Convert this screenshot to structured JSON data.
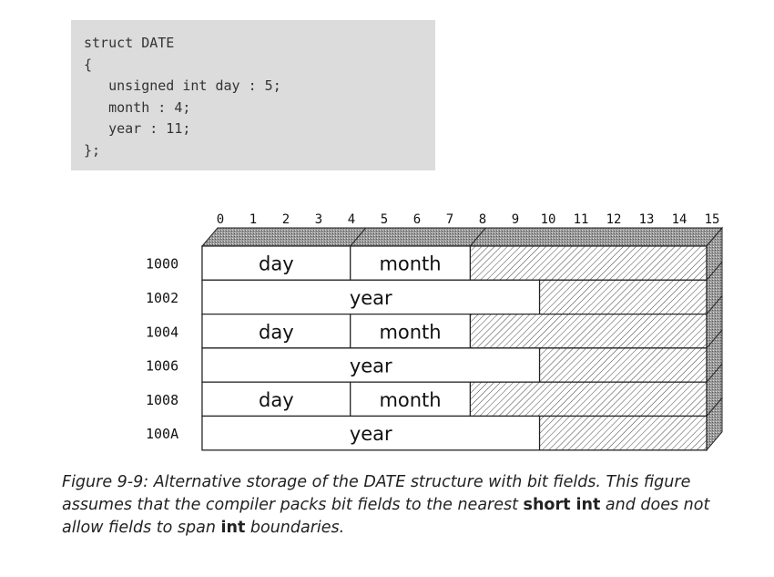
{
  "code": {
    "lines": [
      "struct DATE",
      "{",
      "   unsigned int day : 5;",
      "   month : 4;",
      "   year : 11;",
      "};"
    ]
  },
  "diagram": {
    "bit_labels": [
      "0",
      "1",
      "2",
      "3",
      "4",
      "5",
      "6",
      "7",
      "8",
      "9",
      "10",
      "11",
      "12",
      "13",
      "14",
      "15"
    ],
    "rows": [
      {
        "address": "1000",
        "fields": [
          {
            "label": "day",
            "start": 0,
            "end": 4.7
          },
          {
            "label": "month",
            "start": 4.7,
            "end": 8.5
          }
        ],
        "unused_from": 8.5
      },
      {
        "address": "1002",
        "fields": [
          {
            "label": "year",
            "start": 0,
            "end": 10.7
          }
        ],
        "unused_from": 10.7
      },
      {
        "address": "1004",
        "fields": [
          {
            "label": "day",
            "start": 0,
            "end": 4.7
          },
          {
            "label": "month",
            "start": 4.7,
            "end": 8.5
          }
        ],
        "unused_from": 8.5
      },
      {
        "address": "1006",
        "fields": [
          {
            "label": "year",
            "start": 0,
            "end": 10.7
          }
        ],
        "unused_from": 10.7
      },
      {
        "address": "1008",
        "fields": [
          {
            "label": "day",
            "start": 0,
            "end": 4.7
          },
          {
            "label": "month",
            "start": 4.7,
            "end": 8.5
          }
        ],
        "unused_from": 8.5
      },
      {
        "address": "100A",
        "fields": [
          {
            "label": "year",
            "start": 0,
            "end": 10.7
          }
        ],
        "unused_from": 10.7
      }
    ]
  },
  "caption": {
    "part1": "Figure 9-9: Alternative storage of the DATE structure with bit fields. This figure assumes that the compiler packs bit fields to the nearest ",
    "bold1": "short int",
    "part2": " and does not allow fields to span ",
    "bold2": "int",
    "part3": " boundaries."
  }
}
